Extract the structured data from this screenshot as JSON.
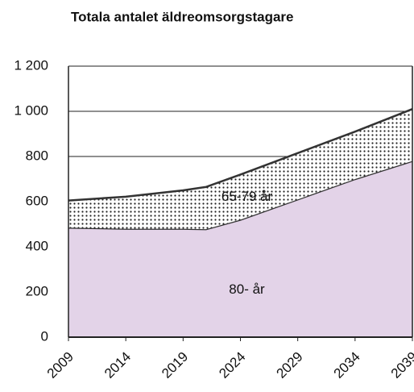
{
  "chart_data": {
    "type": "stacked_area",
    "title": "Totala antalet äldreomsorgstagare",
    "x": [
      2009,
      2014,
      2019,
      2021,
      2024,
      2029,
      2034,
      2039
    ],
    "series": [
      {
        "name": "80- år",
        "color": "#e3d3e8",
        "values": [
          485,
          480,
          480,
          478,
          520,
          610,
          700,
          780
        ]
      },
      {
        "name": "65-79 år",
        "color": "#222222",
        "pattern": "dots",
        "values": [
          120,
          142,
          170,
          187,
          200,
          205,
          210,
          230
        ]
      }
    ],
    "xlim": [
      2009,
      2039
    ],
    "xticks": [
      2009,
      2014,
      2019,
      2024,
      2029,
      2034,
      2039
    ],
    "ylim": [
      0,
      1200
    ],
    "yticks": [
      0,
      200,
      400,
      600,
      800,
      {
        "value": 1000,
        "label": "1 000"
      },
      {
        "value": 1200,
        "label": "1 200"
      }
    ],
    "grid": true
  }
}
